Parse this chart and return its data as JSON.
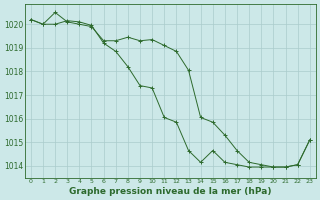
{
  "line1": {
    "x": [
      0,
      1,
      2,
      3,
      4,
      5,
      6,
      7,
      8,
      9,
      10,
      11,
      12,
      13,
      14,
      15,
      16,
      17,
      18,
      19,
      20,
      21,
      22,
      23
    ],
    "y": [
      1020.2,
      1020.0,
      1020.5,
      1020.1,
      1020.0,
      1019.9,
      1019.3,
      1019.3,
      1019.45,
      1019.3,
      1019.35,
      1019.1,
      1018.85,
      1018.05,
      1016.05,
      1015.85,
      1015.3,
      1014.65,
      1014.15,
      1014.05,
      1013.95,
      1013.95,
      1014.05,
      1015.1
    ]
  },
  "line2": {
    "x": [
      0,
      1,
      2,
      3,
      4,
      5,
      6,
      7,
      8,
      9,
      10,
      11,
      12,
      13,
      14,
      15,
      16,
      17,
      18,
      19,
      20,
      21,
      22,
      23
    ],
    "y": [
      1020.2,
      1020.0,
      1020.0,
      1020.15,
      1020.1,
      1019.95,
      1019.2,
      1018.85,
      1018.2,
      1017.4,
      1017.3,
      1016.05,
      1015.85,
      1014.65,
      1014.15,
      1014.65,
      1014.15,
      1014.05,
      1013.95,
      1013.95,
      1013.95,
      1013.95,
      1014.05,
      1015.1
    ]
  },
  "ylim": [
    1013.5,
    1020.85
  ],
  "yticks": [
    1014,
    1015,
    1016,
    1017,
    1018,
    1019,
    1020
  ],
  "xtick_labels": [
    "0",
    "1",
    "2",
    "3",
    "4",
    "5",
    "6",
    "7",
    "8",
    "9",
    "10",
    "11",
    "12",
    "13",
    "14",
    "15",
    "16",
    "17",
    "18",
    "19",
    "20",
    "21",
    "22",
    "23"
  ],
  "xlabel": "Graphe pression niveau de la mer (hPa)",
  "line_color": "#2d6a2d",
  "marker": "+",
  "bg_color": "#cce8e8",
  "grid_color": "#aacccc",
  "xlabel_color": "#2d6a2d"
}
